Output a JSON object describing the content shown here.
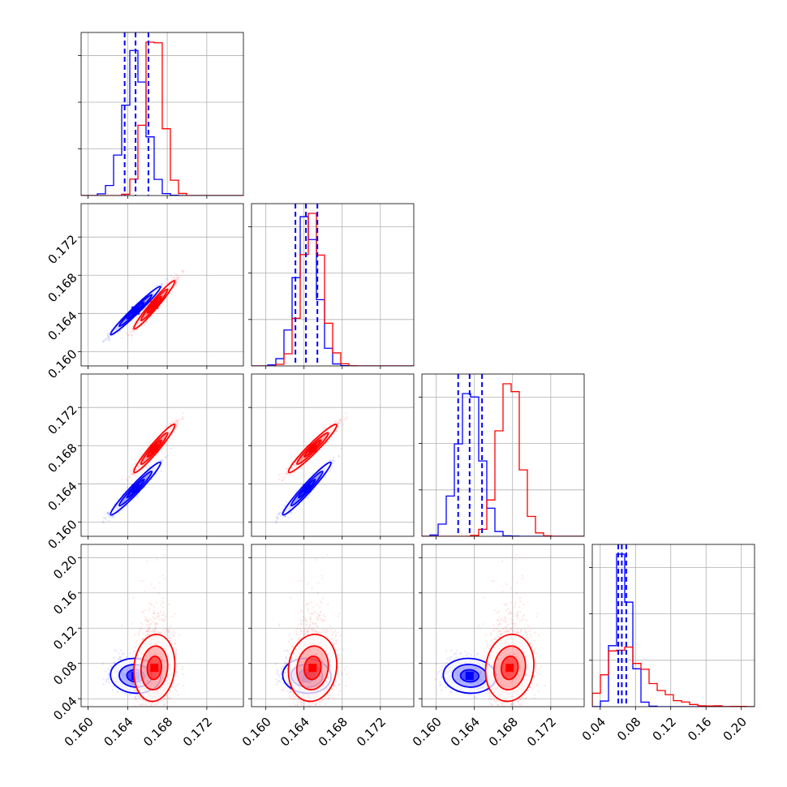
{
  "chart_data": {
    "type": "corner",
    "grid": true,
    "parameters": 4,
    "colors": {
      "blue": "#0000ff",
      "red": "#ff0000"
    },
    "series": [
      {
        "color": "blue",
        "means": [
          0.1648,
          0.1643,
          0.1635,
          0.066
        ],
        "sds": [
          0.0011,
          0.0011,
          0.0012,
          0.0065
        ],
        "corr": [
          [
            1,
            0.98,
            0.97,
            -0.05
          ],
          [
            0.98,
            1,
            0.97,
            -0.05
          ],
          [
            0.97,
            0.97,
            1,
            -0.05
          ],
          [
            -0.05,
            -0.05,
            -0.05,
            1
          ]
        ]
      },
      {
        "color": "red",
        "means": [
          0.1667,
          0.1649,
          0.1677,
          0.075
        ],
        "sds": [
          0.0009,
          0.0011,
          0.0011,
          0.018
        ],
        "corr": [
          [
            1,
            0.97,
            0.96,
            0.1
          ],
          [
            0.97,
            1,
            0.96,
            0.1
          ],
          [
            0.96,
            0.96,
            1,
            0.1
          ],
          [
            0.1,
            0.1,
            0.1,
            1
          ]
        ]
      }
    ],
    "quantile_lines": [
      {
        "color": "blue",
        "values": [
          0.1637,
          0.1648,
          0.1661
        ]
      },
      {
        "color": "blue",
        "values": [
          0.1631,
          0.1642,
          0.1654
        ]
      },
      {
        "color": "blue",
        "values": [
          0.1623,
          0.1635,
          0.1648
        ]
      },
      {
        "color": "blue",
        "values": [
          0.0605,
          0.0645,
          0.0695
        ]
      }
    ],
    "ranges": [
      [
        0.1593,
        0.1757
      ],
      [
        0.1585,
        0.1755
      ],
      [
        0.1585,
        0.1755
      ],
      [
        0.031,
        0.215
      ]
    ],
    "ticks": [
      [
        "0.160",
        "0.164",
        "0.168",
        "0.172"
      ],
      [
        "0.160",
        "0.164",
        "0.168",
        "0.172"
      ],
      [
        "0.160",
        "0.164",
        "0.168",
        "0.172"
      ],
      [
        "0.04",
        "0.08",
        "0.12",
        "0.16",
        "0.20"
      ]
    ],
    "tick_values": [
      [
        0.16,
        0.164,
        0.168,
        0.172
      ],
      [
        0.16,
        0.164,
        0.168,
        0.172
      ],
      [
        0.16,
        0.164,
        0.168,
        0.172
      ],
      [
        0.04,
        0.08,
        0.12,
        0.16,
        0.2
      ]
    ]
  }
}
